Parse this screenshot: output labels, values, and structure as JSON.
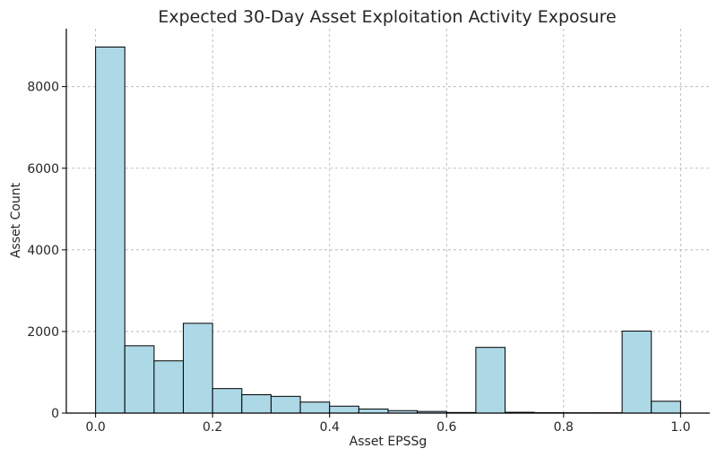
{
  "chart_data": {
    "type": "bar",
    "title": "Expected 30-Day Asset Exploitation Activity Exposure",
    "xlabel": "Asset EPSSg",
    "ylabel": "Asset Count",
    "bar_color": "#add8e6",
    "edge_color": "#000000",
    "grid": true,
    "xlim": [
      -0.05,
      1.05
    ],
    "ylim": [
      0,
      9420
    ],
    "x_ticks": [
      0.0,
      0.2,
      0.4,
      0.6,
      0.8,
      1.0
    ],
    "x_tick_labels": [
      "0.0",
      "0.2",
      "0.4",
      "0.6",
      "0.8",
      "1.0"
    ],
    "y_ticks": [
      0,
      2000,
      4000,
      6000,
      8000
    ],
    "y_tick_labels": [
      "0",
      "2000",
      "4000",
      "6000",
      "8000"
    ],
    "bin_edges": [
      0.0,
      0.05,
      0.1,
      0.15,
      0.2,
      0.25,
      0.3,
      0.35,
      0.4,
      0.45,
      0.5,
      0.55,
      0.6,
      0.65,
      0.7,
      0.75,
      0.8,
      0.85,
      0.9,
      0.95,
      1.0
    ],
    "values": [
      8970,
      1650,
      1280,
      2200,
      600,
      450,
      410,
      270,
      170,
      100,
      60,
      40,
      15,
      1610,
      20,
      10,
      8,
      8,
      2010,
      290
    ]
  }
}
